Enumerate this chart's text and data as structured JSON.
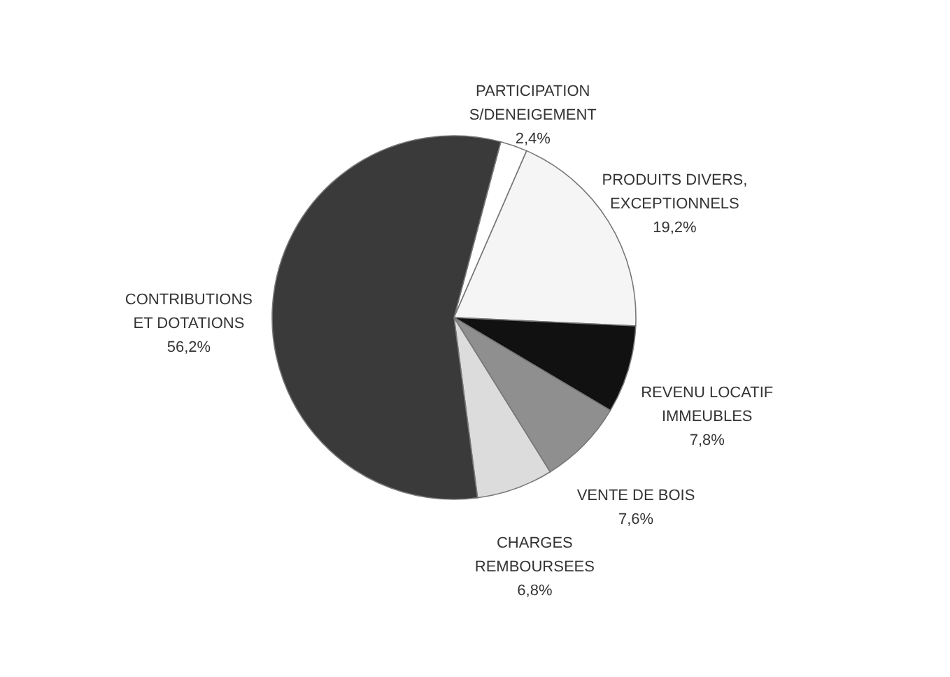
{
  "chart_data": {
    "type": "pie",
    "categories": [
      "PARTICIPATION\nS/DENEIGEMENT",
      "PRODUITS DIVERS,\nEXCEPTIONNELS",
      "REVENU LOCATIF\nIMMEUBLES",
      "VENTE DE BOIS",
      "CHARGES\nREMBOURSEES",
      "CONTRIBUTIONS\nET DOTATIONS"
    ],
    "values": [
      2.4,
      19.2,
      7.8,
      7.6,
      6.8,
      56.2
    ],
    "value_labels": [
      "2,4%",
      "19,2%",
      "7,8%",
      "7,6%",
      "6,8%",
      "56,2%"
    ],
    "colors": [
      "#ffffff",
      "#f5f5f5",
      "#111111",
      "#8f8f8f",
      "#dcdcdc",
      "#3a3a3a"
    ],
    "legend": false
  }
}
